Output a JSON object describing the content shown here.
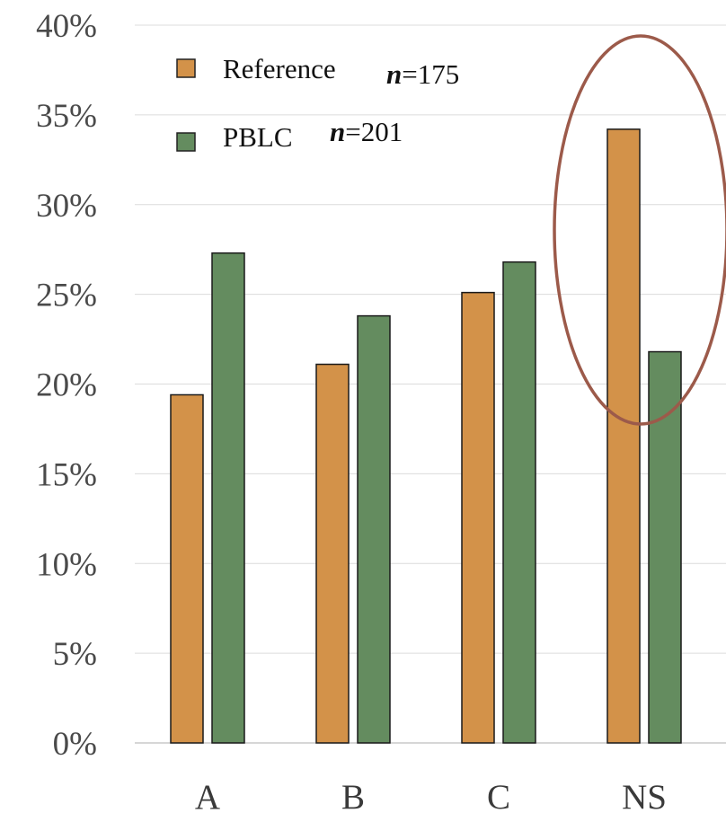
{
  "chart_data": {
    "type": "bar",
    "categories": [
      "A",
      "B",
      "C",
      "NS"
    ],
    "series": [
      {
        "name": "Reference",
        "n_label": "n",
        "n_value": "=175",
        "color": "#d39249",
        "values": [
          19.4,
          21.1,
          25.1,
          34.2
        ]
      },
      {
        "name": "PBLC",
        "n_label": "n",
        "n_value": "=201",
        "color": "#648c5f",
        "values": [
          27.3,
          23.8,
          26.8,
          21.8
        ]
      }
    ],
    "y_ticks": [
      "0%",
      "5%",
      "10%",
      "15%",
      "20%",
      "25%",
      "30%",
      "35%",
      "40%"
    ],
    "ylim": [
      0,
      40
    ],
    "grid": true,
    "legend_position": "top-left",
    "annotation": {
      "shape": "ellipse",
      "target_category": "NS",
      "color": "#9c5a4a"
    }
  }
}
